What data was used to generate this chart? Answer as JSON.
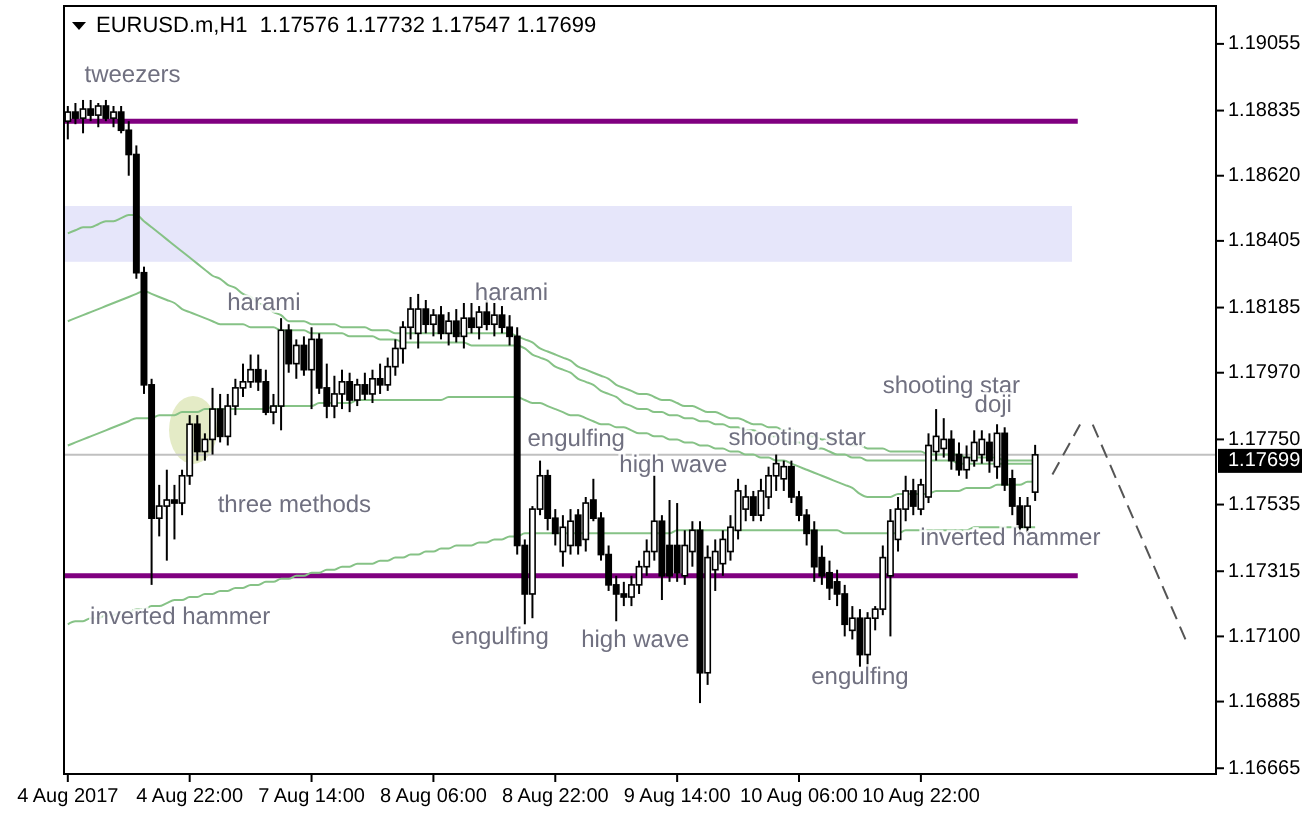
{
  "chart_data": {
    "type": "candlestick",
    "title": "EURUSD.m,H1  1.17576 1.17732 1.17547 1.17699",
    "categories": [
      "4 Aug 2017",
      null,
      null,
      null,
      null,
      null,
      null,
      null,
      null,
      null,
      null,
      null,
      null,
      null,
      null,
      null,
      "4 Aug 22:00",
      null,
      null,
      null,
      null,
      null,
      null,
      null,
      null,
      null,
      null,
      null,
      null,
      null,
      null,
      null,
      "7 Aug 14:00",
      null,
      null,
      null,
      null,
      null,
      null,
      null,
      null,
      null,
      null,
      null,
      null,
      null,
      null,
      null,
      "8 Aug 06:00",
      null,
      null,
      null,
      null,
      null,
      null,
      null,
      null,
      null,
      null,
      null,
      null,
      null,
      null,
      null,
      "8 Aug 22:00",
      null,
      null,
      null,
      null,
      null,
      null,
      null,
      null,
      null,
      null,
      null,
      null,
      null,
      null,
      null,
      "9 Aug 14:00",
      null,
      null,
      null,
      null,
      null,
      null,
      null,
      null,
      null,
      null,
      null,
      null,
      null,
      null,
      null,
      "10 Aug 06:00",
      null,
      null,
      null,
      null,
      null,
      null,
      null,
      null,
      null,
      null,
      null,
      null,
      null,
      null,
      null,
      "10 Aug 22:00",
      null,
      null,
      null,
      null,
      null,
      null,
      null,
      null,
      null,
      null,
      null,
      null,
      null,
      null,
      null
    ],
    "ohlc": [
      [
        1.188,
        1.1885,
        1.1874,
        1.1883
      ],
      [
        1.1883,
        1.1886,
        1.1879,
        1.1881
      ],
      [
        1.1881,
        1.1887,
        1.1876,
        1.1884
      ],
      [
        1.1884,
        1.1887,
        1.188,
        1.1882
      ],
      [
        1.1882,
        1.1886,
        1.1878,
        1.1885
      ],
      [
        1.1885,
        1.1887,
        1.188,
        1.1881
      ],
      [
        1.1881,
        1.1885,
        1.1878,
        1.1883
      ],
      [
        1.1883,
        1.1885,
        1.1876,
        1.1877
      ],
      [
        1.1877,
        1.188,
        1.1862,
        1.1869
      ],
      [
        1.1869,
        1.1872,
        1.1828,
        1.183
      ],
      [
        1.183,
        1.1832,
        1.179,
        1.1793
      ],
      [
        1.1793,
        1.1795,
        1.1727,
        1.1749
      ],
      [
        1.1749,
        1.176,
        1.1743,
        1.1753
      ],
      [
        1.1753,
        1.1765,
        1.1735,
        1.1755
      ],
      [
        1.1755,
        1.176,
        1.1742,
        1.1754
      ],
      [
        1.1754,
        1.1765,
        1.175,
        1.1763
      ],
      [
        1.1763,
        1.1783,
        1.176,
        1.178
      ],
      [
        1.178,
        1.1783,
        1.1768,
        1.1771
      ],
      [
        1.1771,
        1.1777,
        1.1768,
        1.1775
      ],
      [
        1.1775,
        1.1792,
        1.177,
        1.1785
      ],
      [
        1.1785,
        1.179,
        1.1774,
        1.1776
      ],
      [
        1.1776,
        1.179,
        1.1773,
        1.1786
      ],
      [
        1.1786,
        1.1795,
        1.1783,
        1.1792
      ],
      [
        1.1792,
        1.18,
        1.1789,
        1.1794
      ],
      [
        1.1794,
        1.1803,
        1.1792,
        1.1798
      ],
      [
        1.1798,
        1.1803,
        1.1791,
        1.1794
      ],
      [
        1.1794,
        1.1798,
        1.1783,
        1.1784
      ],
      [
        1.1784,
        1.179,
        1.178,
        1.1786
      ],
      [
        1.1786,
        1.1815,
        1.1778,
        1.1811
      ],
      [
        1.1811,
        1.1813,
        1.1797,
        1.18
      ],
      [
        1.18,
        1.1808,
        1.1795,
        1.1806
      ],
      [
        1.1806,
        1.1809,
        1.1796,
        1.1798
      ],
      [
        1.1798,
        1.1812,
        1.1785,
        1.1808
      ],
      [
        1.1808,
        1.181,
        1.179,
        1.1792
      ],
      [
        1.1792,
        1.18,
        1.1782,
        1.1786
      ],
      [
        1.1786,
        1.1796,
        1.1782,
        1.179
      ],
      [
        1.179,
        1.1798,
        1.1785,
        1.1794
      ],
      [
        1.1794,
        1.1797,
        1.1784,
        1.1788
      ],
      [
        1.1788,
        1.1795,
        1.1786,
        1.1793
      ],
      [
        1.1793,
        1.1797,
        1.1788,
        1.179
      ],
      [
        1.179,
        1.1798,
        1.1787,
        1.1795
      ],
      [
        1.1795,
        1.18,
        1.179,
        1.1793
      ],
      [
        1.1793,
        1.1802,
        1.1791,
        1.1799
      ],
      [
        1.1799,
        1.1808,
        1.1796,
        1.1805
      ],
      [
        1.1805,
        1.1814,
        1.18,
        1.1812
      ],
      [
        1.1812,
        1.1822,
        1.1808,
        1.1818
      ],
      [
        1.181,
        1.1823,
        1.1805,
        1.1818
      ],
      [
        1.1818,
        1.1821,
        1.181,
        1.1813
      ],
      [
        1.1813,
        1.1818,
        1.1809,
        1.1816
      ],
      [
        1.1816,
        1.1819,
        1.1808,
        1.181
      ],
      [
        1.181,
        1.1817,
        1.1806,
        1.1814
      ],
      [
        1.1814,
        1.1818,
        1.1807,
        1.1809
      ],
      [
        1.1809,
        1.182,
        1.1805,
        1.1815
      ],
      [
        1.1815,
        1.182,
        1.181,
        1.1812
      ],
      [
        1.1812,
        1.1819,
        1.1808,
        1.1817
      ],
      [
        1.1817,
        1.1821,
        1.1811,
        1.1813
      ],
      [
        1.1813,
        1.182,
        1.1809,
        1.1816
      ],
      [
        1.1816,
        1.1819,
        1.181,
        1.1812
      ],
      [
        1.1812,
        1.1816,
        1.1806,
        1.1809
      ],
      [
        1.1809,
        1.1812,
        1.1737,
        1.174
      ],
      [
        1.174,
        1.1742,
        1.1714,
        1.1724
      ],
      [
        1.1724,
        1.1753,
        1.1716,
        1.1752
      ],
      [
        1.1752,
        1.1768,
        1.175,
        1.1763
      ],
      [
        1.1763,
        1.1765,
        1.1745,
        1.1749
      ],
      [
        1.1749,
        1.1752,
        1.174,
        1.1744
      ],
      [
        1.1738,
        1.175,
        1.1733,
        1.1746
      ],
      [
        1.174,
        1.1752,
        1.1737,
        1.1748
      ],
      [
        1.175,
        1.1752,
        1.1737,
        1.174
      ],
      [
        1.1742,
        1.1756,
        1.1738,
        1.1754
      ],
      [
        1.1755,
        1.1762,
        1.1748,
        1.1749
      ],
      [
        1.1749,
        1.1751,
        1.1735,
        1.1737
      ],
      [
        1.1737,
        1.174,
        1.1725,
        1.1727
      ],
      [
        1.1727,
        1.173,
        1.1715,
        1.1724
      ],
      [
        1.1724,
        1.1728,
        1.172,
        1.1723
      ],
      [
        1.1723,
        1.173,
        1.172,
        1.1727
      ],
      [
        1.1727,
        1.1735,
        1.1724,
        1.1733
      ],
      [
        1.1733,
        1.1742,
        1.173,
        1.1738
      ],
      [
        1.1738,
        1.1763,
        1.1735,
        1.1748
      ],
      [
        1.1748,
        1.175,
        1.1722,
        1.173
      ],
      [
        1.174,
        1.1755,
        1.1728,
        1.173
      ],
      [
        1.174,
        1.1754,
        1.1728,
        1.1731
      ],
      [
        1.173,
        1.1745,
        1.1727,
        1.174
      ],
      [
        1.1738,
        1.1748,
        1.1733,
        1.1745
      ],
      [
        1.1745,
        1.1748,
        1.1688,
        1.1698
      ],
      [
        1.1698,
        1.174,
        1.1694,
        1.1736
      ],
      [
        1.1732,
        1.1742,
        1.1725,
        1.1738
      ],
      [
        1.1734,
        1.1745,
        1.173,
        1.1742
      ],
      [
        1.1738,
        1.175,
        1.1735,
        1.1746
      ],
      [
        1.1745,
        1.1762,
        1.1742,
        1.1758
      ],
      [
        1.1752,
        1.176,
        1.1748,
        1.1756
      ],
      [
        1.1756,
        1.1758,
        1.1748,
        1.175
      ],
      [
        1.175,
        1.1762,
        1.1748,
        1.1758
      ],
      [
        1.1756,
        1.1766,
        1.1752,
        1.1763
      ],
      [
        1.1763,
        1.177,
        1.1758,
        1.1767
      ],
      [
        1.1762,
        1.1768,
        1.1758,
        1.1766
      ],
      [
        1.1766,
        1.1768,
        1.1754,
        1.1756
      ],
      [
        1.1756,
        1.1758,
        1.1748,
        1.175
      ],
      [
        1.175,
        1.1752,
        1.174,
        1.1744
      ],
      [
        1.1745,
        1.1748,
        1.1728,
        1.1733
      ],
      [
        1.1736,
        1.174,
        1.1727,
        1.173
      ],
      [
        1.1731,
        1.1735,
        1.1722,
        1.1726
      ],
      [
        1.1728,
        1.1732,
        1.172,
        1.1724
      ],
      [
        1.1724,
        1.1727,
        1.171,
        1.1714
      ],
      [
        1.1712,
        1.172,
        1.1709,
        1.1716
      ],
      [
        1.1716,
        1.1719,
        1.17,
        1.1704
      ],
      [
        1.1704,
        1.1718,
        1.17,
        1.1716
      ],
      [
        1.1716,
        1.172,
        1.1712,
        1.1719
      ],
      [
        1.1719,
        1.174,
        1.1717,
        1.1736
      ],
      [
        1.173,
        1.1752,
        1.171,
        1.1748
      ],
      [
        1.1742,
        1.1756,
        1.1738,
        1.1752
      ],
      [
        1.1752,
        1.1763,
        1.1748,
        1.1758
      ],
      [
        1.1758,
        1.1762,
        1.175,
        1.1753
      ],
      [
        1.1752,
        1.1762,
        1.175,
        1.176
      ],
      [
        1.1756,
        1.1777,
        1.1754,
        1.1773
      ],
      [
        1.1771,
        1.1785,
        1.1768,
        1.1776
      ],
      [
        1.1772,
        1.1782,
        1.1769,
        1.1775
      ],
      [
        1.1775,
        1.1778,
        1.1765,
        1.1768
      ],
      [
        1.177,
        1.1774,
        1.1763,
        1.1765
      ],
      [
        1.1765,
        1.1773,
        1.1762,
        1.1769
      ],
      [
        1.1768,
        1.1778,
        1.1766,
        1.1774
      ],
      [
        1.177,
        1.1778,
        1.1767,
        1.1775
      ],
      [
        1.1774,
        1.1777,
        1.1764,
        1.1768
      ],
      [
        1.1766,
        1.178,
        1.1762,
        1.1777
      ],
      [
        1.1777,
        1.1779,
        1.1758,
        1.176
      ],
      [
        1.1762,
        1.1765,
        1.175,
        1.1753
      ],
      [
        1.1753,
        1.1756,
        1.1743,
        1.1746
      ],
      [
        1.1746,
        1.1756,
        1.1744,
        1.1753
      ],
      [
        1.17576,
        1.17732,
        1.17547,
        1.17699
      ]
    ],
    "series": [
      {
        "type": "line",
        "color": "#86c286",
        "values": [
          1.1843,
          1.1844,
          1.1845,
          1.1845,
          1.1846,
          1.1847,
          1.1847,
          1.1848,
          1.1849,
          1.1849,
          1.1847,
          1.1845,
          1.1843,
          1.1841,
          1.1839,
          1.1837,
          1.1835,
          1.1833,
          1.1831,
          1.1829,
          1.1828,
          1.1826,
          1.1825,
          1.1823,
          1.1822,
          1.182,
          1.1819,
          1.1817,
          1.1816,
          1.1814,
          1.1814,
          1.1814,
          1.1813,
          1.1813,
          1.1813,
          1.1813,
          1.1812,
          1.1812,
          1.1812,
          1.1812,
          1.1811,
          1.1811,
          1.1811,
          1.181,
          1.181,
          1.181,
          1.181,
          1.181,
          1.181,
          1.181,
          1.181,
          1.181,
          1.181,
          1.181,
          1.181,
          1.181,
          1.181,
          1.181,
          1.181,
          1.1809,
          1.1808,
          1.1807,
          1.1805,
          1.1804,
          1.1803,
          1.1802,
          1.1801,
          1.1799,
          1.1798,
          1.1797,
          1.1796,
          1.1795,
          1.1793,
          1.1792,
          1.1791,
          1.179,
          1.179,
          1.1789,
          1.1788,
          1.1788,
          1.1787,
          1.1786,
          1.1786,
          1.1785,
          1.1784,
          1.1784,
          1.1783,
          1.1782,
          1.1782,
          1.1781,
          1.178,
          1.178,
          1.1779,
          1.1779,
          1.1778,
          1.1778,
          1.1777,
          1.1776,
          1.1776,
          1.1775,
          1.1775,
          1.1774,
          1.1774,
          1.1773,
          1.1773,
          1.1772,
          1.1772,
          1.1772,
          1.1771,
          1.1771,
          1.1771,
          1.1771,
          1.1771,
          1.177,
          1.177,
          1.177,
          1.177,
          1.177,
          1.1769,
          1.1769,
          1.1769,
          1.1769,
          1.1769,
          1.1768,
          1.1768,
          1.1768,
          1.1768,
          1.1768
        ]
      },
      {
        "type": "line",
        "color": "#86c286",
        "values": [
          1.1814,
          1.1815,
          1.1816,
          1.1817,
          1.1818,
          1.1819,
          1.182,
          1.1821,
          1.1822,
          1.1823,
          1.1824,
          1.1823,
          1.1822,
          1.1821,
          1.182,
          1.1818,
          1.1817,
          1.1816,
          1.1815,
          1.1814,
          1.1813,
          1.1813,
          1.1813,
          1.1813,
          1.1812,
          1.1812,
          1.1812,
          1.1812,
          1.1811,
          1.1811,
          1.1811,
          1.1811,
          1.181,
          1.181,
          1.181,
          1.181,
          1.181,
          1.1809,
          1.1809,
          1.1809,
          1.1809,
          1.1808,
          1.1808,
          1.1808,
          1.1807,
          1.1807,
          1.1807,
          1.1807,
          1.1807,
          1.1807,
          1.1807,
          1.1807,
          1.1807,
          1.1806,
          1.1806,
          1.1806,
          1.1806,
          1.1806,
          1.1806,
          1.1806,
          1.1805,
          1.1803,
          1.1802,
          1.1801,
          1.1799,
          1.1798,
          1.1797,
          1.1795,
          1.1794,
          1.1793,
          1.1791,
          1.179,
          1.1789,
          1.1787,
          1.1786,
          1.1785,
          1.1785,
          1.1784,
          1.1784,
          1.1783,
          1.1783,
          1.1782,
          1.1782,
          1.1781,
          1.1781,
          1.178,
          1.178,
          1.1779,
          1.1779,
          1.1778,
          1.1778,
          1.1777,
          1.1776,
          1.1776,
          1.1775,
          1.1774,
          1.1774,
          1.1773,
          1.1772,
          1.1772,
          1.1771,
          1.177,
          1.177,
          1.1769,
          1.1769,
          1.1768,
          1.1768,
          1.1768,
          1.1768,
          1.1768,
          1.1768,
          1.1768,
          1.1768,
          1.1768,
          1.1768,
          1.1768,
          1.1768,
          1.1767,
          1.1767,
          1.1767,
          1.1767,
          1.1767,
          1.1767,
          1.1767,
          1.1767,
          1.1767,
          1.1767,
          1.1767
        ]
      },
      {
        "type": "line",
        "color": "#86c286",
        "values": [
          1.1773,
          1.1774,
          1.1775,
          1.1776,
          1.1777,
          1.1778,
          1.1779,
          1.178,
          1.1781,
          1.1782,
          1.1782,
          1.1782,
          1.1783,
          1.1783,
          1.1783,
          1.1784,
          1.1784,
          1.1784,
          1.1785,
          1.1785,
          1.1785,
          1.1785,
          1.1785,
          1.1785,
          1.1785,
          1.1785,
          1.1785,
          1.1786,
          1.1786,
          1.1786,
          1.1786,
          1.1786,
          1.1786,
          1.1787,
          1.1787,
          1.1787,
          1.1787,
          1.1787,
          1.1788,
          1.1788,
          1.1788,
          1.1788,
          1.1788,
          1.1788,
          1.1788,
          1.1788,
          1.1788,
          1.1788,
          1.1788,
          1.1788,
          1.1789,
          1.1789,
          1.1789,
          1.1789,
          1.1789,
          1.1789,
          1.1789,
          1.1789,
          1.1789,
          1.1789,
          1.1788,
          1.1787,
          1.1787,
          1.1786,
          1.1785,
          1.1784,
          1.1783,
          1.1783,
          1.1782,
          1.1781,
          1.178,
          1.178,
          1.1779,
          1.1779,
          1.1778,
          1.1777,
          1.1777,
          1.1776,
          1.1776,
          1.1775,
          1.1775,
          1.1774,
          1.1774,
          1.1773,
          1.1773,
          1.1772,
          1.1772,
          1.1771,
          1.1771,
          1.177,
          1.177,
          1.1769,
          1.1769,
          1.1768,
          1.1768,
          1.1767,
          1.1766,
          1.1765,
          1.1764,
          1.1763,
          1.1762,
          1.1761,
          1.176,
          1.1759,
          1.1757,
          1.1756,
          1.1756,
          1.1756,
          1.1756,
          1.1757,
          1.1757,
          1.1757,
          1.1757,
          1.1757,
          1.1758,
          1.1758,
          1.1758,
          1.1758,
          1.1759,
          1.1759,
          1.1759,
          1.1759,
          1.176,
          1.176,
          1.176,
          1.176,
          1.1761,
          1.1761
        ]
      },
      {
        "type": "line",
        "color": "#86c286",
        "values": [
          1.1714,
          1.1715,
          1.1715,
          1.1716,
          1.1716,
          1.1717,
          1.1717,
          1.1718,
          1.1718,
          1.1719,
          1.1719,
          1.172,
          1.172,
          1.1721,
          1.1722,
          1.1722,
          1.1723,
          1.1723,
          1.1724,
          1.1724,
          1.1725,
          1.1725,
          1.1726,
          1.1726,
          1.1727,
          1.1727,
          1.1728,
          1.1728,
          1.1729,
          1.1729,
          1.173,
          1.173,
          1.1731,
          1.1731,
          1.1732,
          1.1732,
          1.1733,
          1.1733,
          1.1734,
          1.1734,
          1.1734,
          1.1735,
          1.1735,
          1.1736,
          1.1736,
          1.1737,
          1.1737,
          1.1738,
          1.1738,
          1.1739,
          1.1739,
          1.174,
          1.174,
          1.174,
          1.1741,
          1.1741,
          1.1742,
          1.1742,
          1.1743,
          1.1743,
          1.1744,
          1.1744,
          1.1744,
          1.1744,
          1.1744,
          1.1744,
          1.1744,
          1.1744,
          1.1744,
          1.1744,
          1.1744,
          1.1744,
          1.1744,
          1.1744,
          1.1744,
          1.1744,
          1.1744,
          1.1744,
          1.1744,
          1.1744,
          1.1745,
          1.1745,
          1.1745,
          1.1745,
          1.1745,
          1.1745,
          1.1745,
          1.1745,
          1.1745,
          1.1745,
          1.1745,
          1.1745,
          1.1745,
          1.1745,
          1.1745,
          1.1745,
          1.1745,
          1.1745,
          1.1745,
          1.1745,
          1.1745,
          1.1745,
          1.1744,
          1.1744,
          1.1744,
          1.1744,
          1.1744,
          1.1744,
          1.1744,
          1.1744,
          1.1745,
          1.1745,
          1.1745,
          1.1745,
          1.1745,
          1.1745,
          1.1745,
          1.1745,
          1.1745,
          1.1746,
          1.1746,
          1.1746,
          1.1746,
          1.1746,
          1.1746,
          1.1746,
          1.1746,
          1.1746
        ]
      }
    ],
    "ylim": [
      1.16646,
      1.1918
    ],
    "yticks": [
      {
        "value": 1.19055,
        "label": "1.19055"
      },
      {
        "value": 1.18835,
        "label": "1.18835"
      },
      {
        "value": 1.1862,
        "label": "1.18620"
      },
      {
        "value": 1.18405,
        "label": "1.18405"
      },
      {
        "value": 1.18185,
        "label": "1.18185"
      },
      {
        "value": 1.1797,
        "label": "1.17970"
      },
      {
        "value": 1.1775,
        "label": "1.17750"
      },
      {
        "value": 1.17535,
        "label": "1.17535"
      },
      {
        "value": 1.17315,
        "label": "1.17315"
      },
      {
        "value": 1.171,
        "label": "1.17100"
      },
      {
        "value": 1.16885,
        "label": "1.16885"
      },
      {
        "value": 1.16665,
        "label": "1.16665"
      }
    ],
    "ref_lines": [
      {
        "axis": "y",
        "value": 1.188,
        "color": "#800080"
      },
      {
        "axis": "y",
        "value": 1.173,
        "color": "#800080"
      },
      {
        "axis": "y",
        "value": 1.17699,
        "label": "1.17699",
        "color": "#c0c0c0"
      }
    ],
    "bands": [
      {
        "axis": "y",
        "from": 1.18336,
        "to": 1.1852,
        "color": "#e6e6fa"
      }
    ],
    "annotations": [
      "tweezers",
      "harami",
      "harami",
      "three methods",
      "inverted hammer",
      "engulfing",
      "high wave",
      "shooting star",
      "engulfing",
      "high wave",
      "engulfing",
      "shooting star",
      "doji",
      "inverted hammer"
    ],
    "grid": false
  }
}
